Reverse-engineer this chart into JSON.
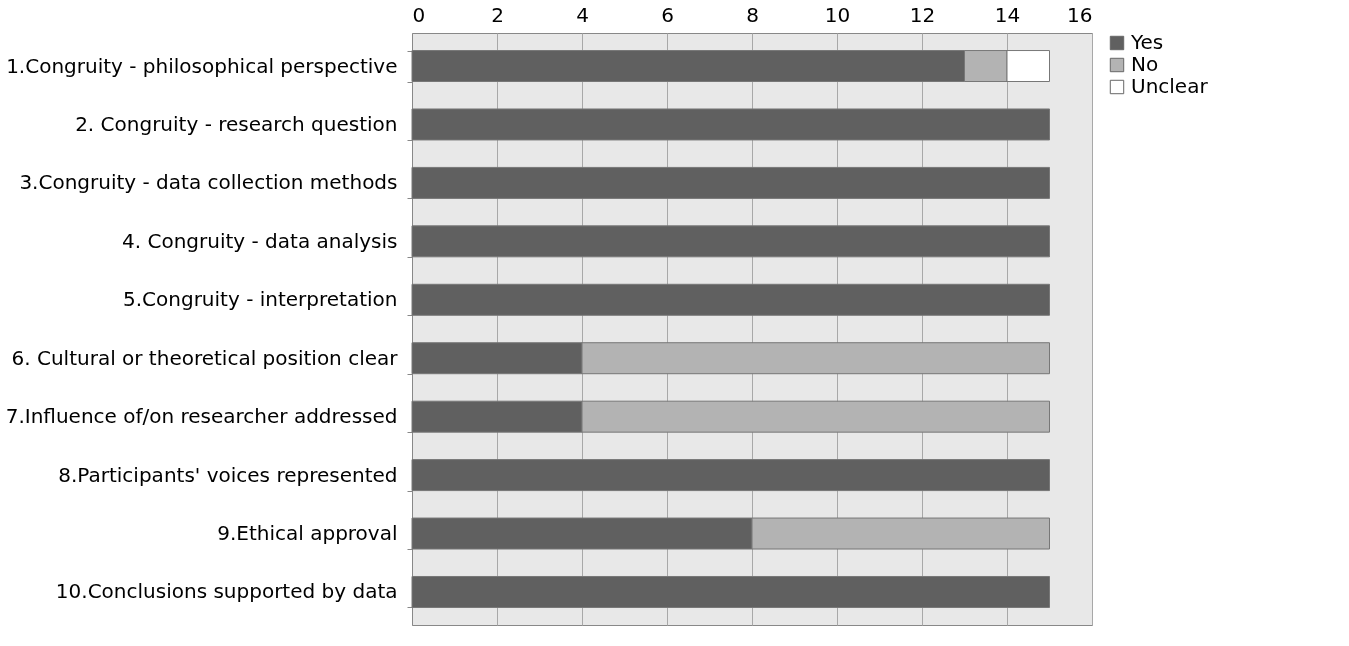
{
  "chart_data": {
    "type": "bar",
    "orientation": "horizontal",
    "stacked": true,
    "categories": [
      "1.Congruity - philosophical perspective",
      "2. Congruity - research question",
      "3.Congruity - data collection methods",
      "4. Congruity - data analysis",
      "5.Congruity - interpretation",
      "6. Cultural or theoretical position clear",
      "7.Influence of/on researcher addressed",
      "8.Participants' voices represented",
      "9.Ethical approval",
      "10.Conclusions supported by data"
    ],
    "series": [
      {
        "name": "Yes",
        "color": "#606060",
        "values": [
          13,
          15,
          15,
          15,
          15,
          4,
          4,
          15,
          8,
          15
        ]
      },
      {
        "name": "No",
        "color": "#b3b3b3",
        "values": [
          1,
          0,
          0,
          0,
          0,
          11,
          11,
          0,
          7,
          0
        ]
      },
      {
        "name": "Unclear",
        "color": "#ffffff",
        "values": [
          1,
          0,
          0,
          0,
          0,
          0,
          0,
          0,
          0,
          0
        ]
      }
    ],
    "xlim": [
      0,
      16
    ],
    "xticks": [
      0,
      2,
      4,
      6,
      8,
      10,
      12,
      14,
      16
    ],
    "grid": "x",
    "legend": "right"
  }
}
